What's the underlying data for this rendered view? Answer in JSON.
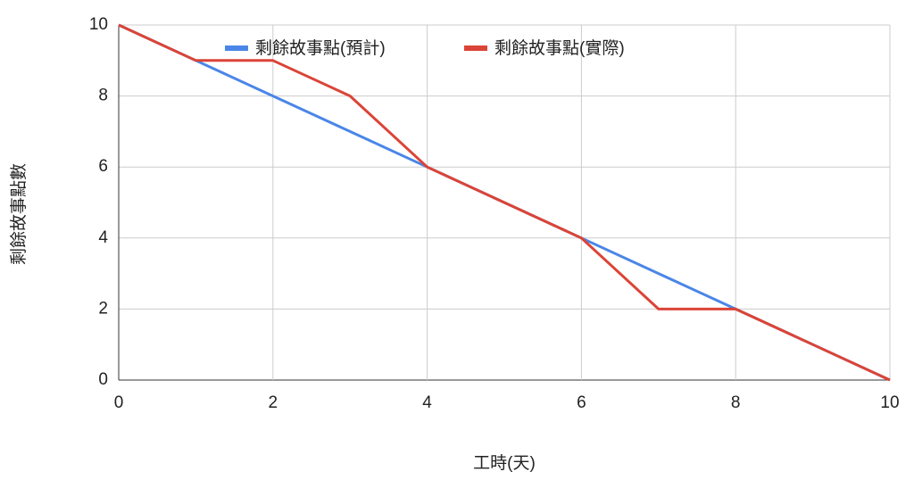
{
  "chart_data": {
    "type": "line",
    "x_label": "工時(天)",
    "y_label": "剩餘故事點數",
    "x": [
      0,
      1,
      2,
      3,
      4,
      5,
      6,
      7,
      8,
      9,
      10
    ],
    "series": [
      {
        "name": "剩餘故事點(預計)",
        "color": "#4a86e8",
        "values": [
          10,
          9,
          8,
          7,
          6,
          5,
          4,
          3,
          2,
          1,
          0
        ]
      },
      {
        "name": "剩餘故事點(實際)",
        "color": "#db4437",
        "values": [
          10,
          9,
          9,
          8,
          6,
          5,
          4,
          2,
          2,
          1,
          0
        ]
      }
    ],
    "xlim": [
      0,
      10
    ],
    "xticks": [
      0,
      2,
      4,
      6,
      8,
      10
    ],
    "ylim": [
      0,
      10
    ],
    "yticks": [
      0,
      2,
      4,
      6,
      8,
      10
    ],
    "grid": true,
    "legend": "top"
  }
}
